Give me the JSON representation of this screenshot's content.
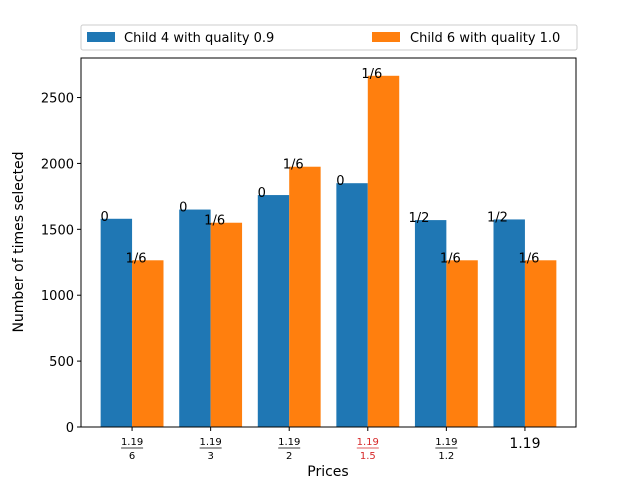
{
  "chart_data": {
    "type": "bar",
    "xlabel": "Prices",
    "ylabel": "Number of times selected",
    "ylim": [
      0,
      2800
    ],
    "yticks": [
      0,
      500,
      1000,
      1500,
      2000,
      2500
    ],
    "categories": [
      {
        "num": "1.19",
        "den": "6"
      },
      {
        "num": "1.19",
        "den": "3"
      },
      {
        "num": "1.19",
        "den": "2"
      },
      {
        "num": "1.19",
        "den": "1.5"
      },
      {
        "num": "1.19",
        "den": "1.2"
      },
      {
        "plain": "1.19"
      }
    ],
    "highlight_category_index": 3,
    "highlight_color": "#d62728",
    "series": [
      {
        "name": "Child 4 with quality 0.9",
        "color": "#1f77b4",
        "values": [
          1580,
          1650,
          1760,
          1850,
          1570,
          1575
        ],
        "labels": [
          "0",
          "0",
          "0",
          "0",
          "1/2",
          "1/2"
        ]
      },
      {
        "name": "Child 6 with quality 1.0",
        "color": "#ff7f0e",
        "values": [
          1265,
          1550,
          1975,
          2665,
          1265,
          1265
        ],
        "labels": [
          "1/6",
          "1/6",
          "1/6",
          "1/6",
          "1/6",
          "1/6"
        ]
      }
    ],
    "legend": "top, above plot",
    "grid": false
  }
}
